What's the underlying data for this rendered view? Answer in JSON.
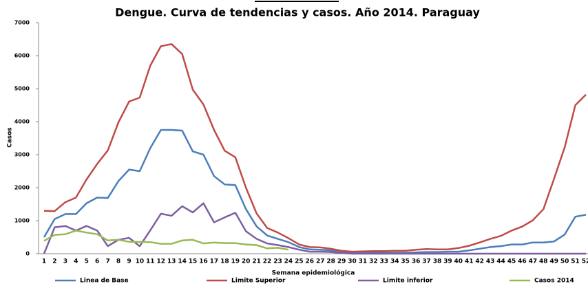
{
  "chart_data": {
    "type": "line",
    "title": "Dengue. Curva de tendencias y casos. Año 2014. Paraguay",
    "x_label": "Semana epidemiológica",
    "y_label": "Casos",
    "categories": [
      "1",
      "2",
      "3",
      "4",
      "5",
      "6",
      "7",
      "8",
      "9",
      "10",
      "11",
      "12",
      "13",
      "14",
      "15",
      "16",
      "17",
      "18",
      "19",
      "20",
      "21",
      "22",
      "23",
      "24",
      "25",
      "26",
      "27",
      "28",
      "29",
      "30",
      "31",
      "32",
      "33",
      "34",
      "35",
      "36",
      "37",
      "38",
      "39",
      "40",
      "41",
      "42",
      "43",
      "44",
      "45",
      "46",
      "47",
      "48",
      "49",
      "50",
      "51",
      "52"
    ],
    "ylim": [
      0,
      7000
    ],
    "yticks": [
      0,
      1000,
      2000,
      3000,
      4000,
      5000,
      6000,
      7000
    ],
    "series": [
      {
        "name": "Linea de Base",
        "color": "#4a7ebb",
        "values": [
          500,
          1050,
          1200,
          1200,
          1530,
          1700,
          1690,
          2200,
          2550,
          2500,
          3200,
          3750,
          3750,
          3730,
          3100,
          3000,
          2350,
          2100,
          2080,
          1350,
          830,
          550,
          450,
          350,
          200,
          130,
          120,
          100,
          60,
          40,
          30,
          30,
          30,
          30,
          30,
          40,
          50,
          50,
          60,
          60,
          100,
          150,
          200,
          230,
          280,
          280,
          340,
          340,
          370,
          580,
          1120,
          1180
        ]
      },
      {
        "name": "Limite Superior",
        "color": "#be4b48",
        "values": [
          1300,
          1290,
          1560,
          1700,
          2250,
          2720,
          3130,
          3980,
          4610,
          4730,
          5700,
          6290,
          6350,
          6050,
          4970,
          4520,
          3750,
          3120,
          2920,
          2000,
          1220,
          780,
          640,
          470,
          280,
          200,
          190,
          150,
          90,
          60,
          70,
          80,
          80,
          90,
          90,
          120,
          140,
          130,
          130,
          170,
          240,
          340,
          450,
          540,
          700,
          820,
          1010,
          1350,
          2270,
          3220,
          4500,
          4820
        ]
      },
      {
        "name": "Limite inferior",
        "color": "#7d5fa0",
        "values": [
          0,
          800,
          840,
          700,
          840,
          700,
          230,
          420,
          480,
          230,
          710,
          1210,
          1150,
          1440,
          1250,
          1530,
          950,
          1100,
          1240,
          680,
          450,
          310,
          260,
          200,
          120,
          60,
          60,
          50,
          20,
          0,
          0,
          0,
          0,
          0,
          0,
          0,
          0,
          0,
          0,
          0,
          0,
          0,
          0,
          0,
          0,
          0,
          0,
          0,
          0,
          0,
          0,
          0
        ]
      },
      {
        "name": "Casos 2014",
        "color": "#98b954",
        "values": [
          390,
          570,
          590,
          700,
          640,
          590,
          400,
          420,
          360,
          360,
          350,
          300,
          300,
          400,
          420,
          310,
          340,
          320,
          320,
          280,
          260,
          160,
          180,
          120,
          null,
          null,
          null,
          null,
          null,
          null,
          null,
          null,
          null,
          null,
          null,
          null,
          null,
          null,
          null,
          null,
          null,
          null,
          null,
          null,
          null,
          null,
          null,
          null,
          null,
          null,
          null,
          null
        ]
      }
    ]
  }
}
